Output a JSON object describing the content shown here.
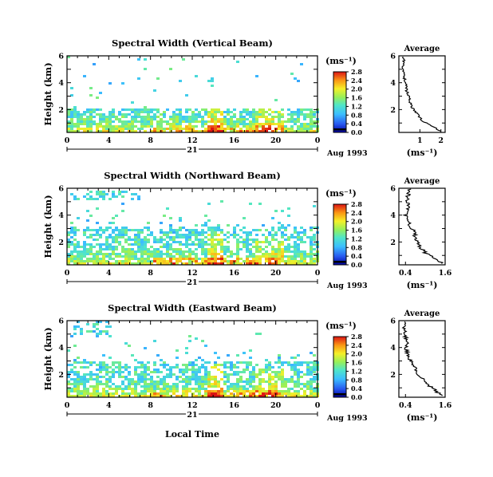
{
  "figure": {
    "xlabel": "Local Time",
    "date_label": "Aug 1993",
    "day_label": "21",
    "cb_unit": "(ms⁻¹)",
    "avg_unit": "(ms⁻¹)"
  },
  "chart_data": [
    {
      "type": "heatmap",
      "title": "Spectral Width (Vertical Beam)",
      "ylabel": "Height (km)",
      "x_ticks": [
        "0",
        "4",
        "8",
        "12",
        "16",
        "20",
        "0"
      ],
      "xlim": [
        0,
        24
      ],
      "y_ticks": [
        "2",
        "4",
        "6"
      ],
      "ylim": [
        0.3,
        6
      ],
      "colorbar_ticks": [
        "0.0",
        "0.4",
        "0.8",
        "1.2",
        "1.6",
        "2.0",
        "2.4",
        "2.8"
      ],
      "colorbar_range": [
        0,
        2.8
      ]
    },
    {
      "type": "line",
      "title": "Average",
      "xlabel": "(ms⁻¹)",
      "x_ticks": [
        "1",
        "2"
      ],
      "xlim": [
        0,
        2.2
      ],
      "y_ticks": [
        "2",
        "4",
        "6"
      ],
      "ylim": [
        0.3,
        6
      ],
      "series": [
        {
          "height": [
            0.4,
            0.8,
            1.2,
            1.6,
            2.0,
            2.4,
            2.8,
            3.2,
            3.6,
            4.0,
            4.4,
            4.8,
            5.2,
            5.6,
            6.0
          ],
          "width": [
            2.0,
            1.5,
            1.1,
            0.9,
            0.7,
            0.55,
            0.5,
            0.4,
            0.35,
            0.3,
            0.25,
            0.25,
            0.2,
            0.25,
            0.2
          ]
        }
      ]
    },
    {
      "type": "heatmap",
      "title": "Spectral Width (Northward Beam)",
      "ylabel": "Height (km)",
      "x_ticks": [
        "0",
        "4",
        "8",
        "12",
        "16",
        "20",
        "0"
      ],
      "xlim": [
        0,
        24
      ],
      "y_ticks": [
        "2",
        "4",
        "6"
      ],
      "ylim": [
        0.3,
        6
      ],
      "colorbar_ticks": [
        "0.0",
        "0.4",
        "0.8",
        "1.2",
        "1.6",
        "2.0",
        "2.4",
        "2.8"
      ],
      "colorbar_range": [
        0,
        2.8
      ]
    },
    {
      "type": "line",
      "title": "Average",
      "xlabel": "(ms⁻¹)",
      "x_ticks": [
        "0.4",
        "1.6"
      ],
      "xlim": [
        0.2,
        1.6
      ],
      "y_ticks": [
        "2",
        "4",
        "6"
      ],
      "ylim": [
        0.3,
        6
      ],
      "series": [
        {
          "height": [
            0.4,
            0.8,
            1.2,
            1.6,
            2.0,
            2.4,
            2.8,
            3.2,
            3.6,
            4.0,
            4.4,
            4.8,
            5.2,
            5.6,
            6.0
          ],
          "width": [
            1.5,
            1.3,
            1.0,
            0.85,
            0.75,
            0.7,
            0.65,
            0.55,
            0.45,
            0.4,
            0.45,
            0.5,
            0.45,
            0.5,
            0.55
          ]
        }
      ]
    },
    {
      "type": "heatmap",
      "title": "Spectral Width (Eastward Beam)",
      "ylabel": "Height (km)",
      "x_ticks": [
        "0",
        "4",
        "8",
        "12",
        "16",
        "20",
        "0"
      ],
      "xlim": [
        0,
        24
      ],
      "y_ticks": [
        "2",
        "4",
        "6"
      ],
      "ylim": [
        0.3,
        6
      ],
      "colorbar_ticks": [
        "0.0",
        "0.4",
        "0.8",
        "1.2",
        "1.6",
        "2.0",
        "2.4",
        "2.8"
      ],
      "colorbar_range": [
        0,
        2.8
      ]
    },
    {
      "type": "line",
      "title": "Average",
      "xlabel": "(ms⁻¹)",
      "x_ticks": [
        "0.4",
        "1.6"
      ],
      "xlim": [
        0.2,
        1.6
      ],
      "y_ticks": [
        "2",
        "4",
        "6"
      ],
      "ylim": [
        0.3,
        6
      ],
      "series": [
        {
          "height": [
            0.4,
            0.8,
            1.2,
            1.6,
            2.0,
            2.4,
            2.8,
            3.2,
            3.6,
            4.0,
            4.4,
            4.8,
            5.2,
            5.6,
            6.0
          ],
          "width": [
            1.5,
            1.3,
            1.1,
            0.95,
            0.8,
            0.7,
            0.6,
            0.5,
            0.45,
            0.4,
            0.45,
            0.4,
            0.4,
            0.35,
            0.4
          ]
        }
      ]
    }
  ]
}
